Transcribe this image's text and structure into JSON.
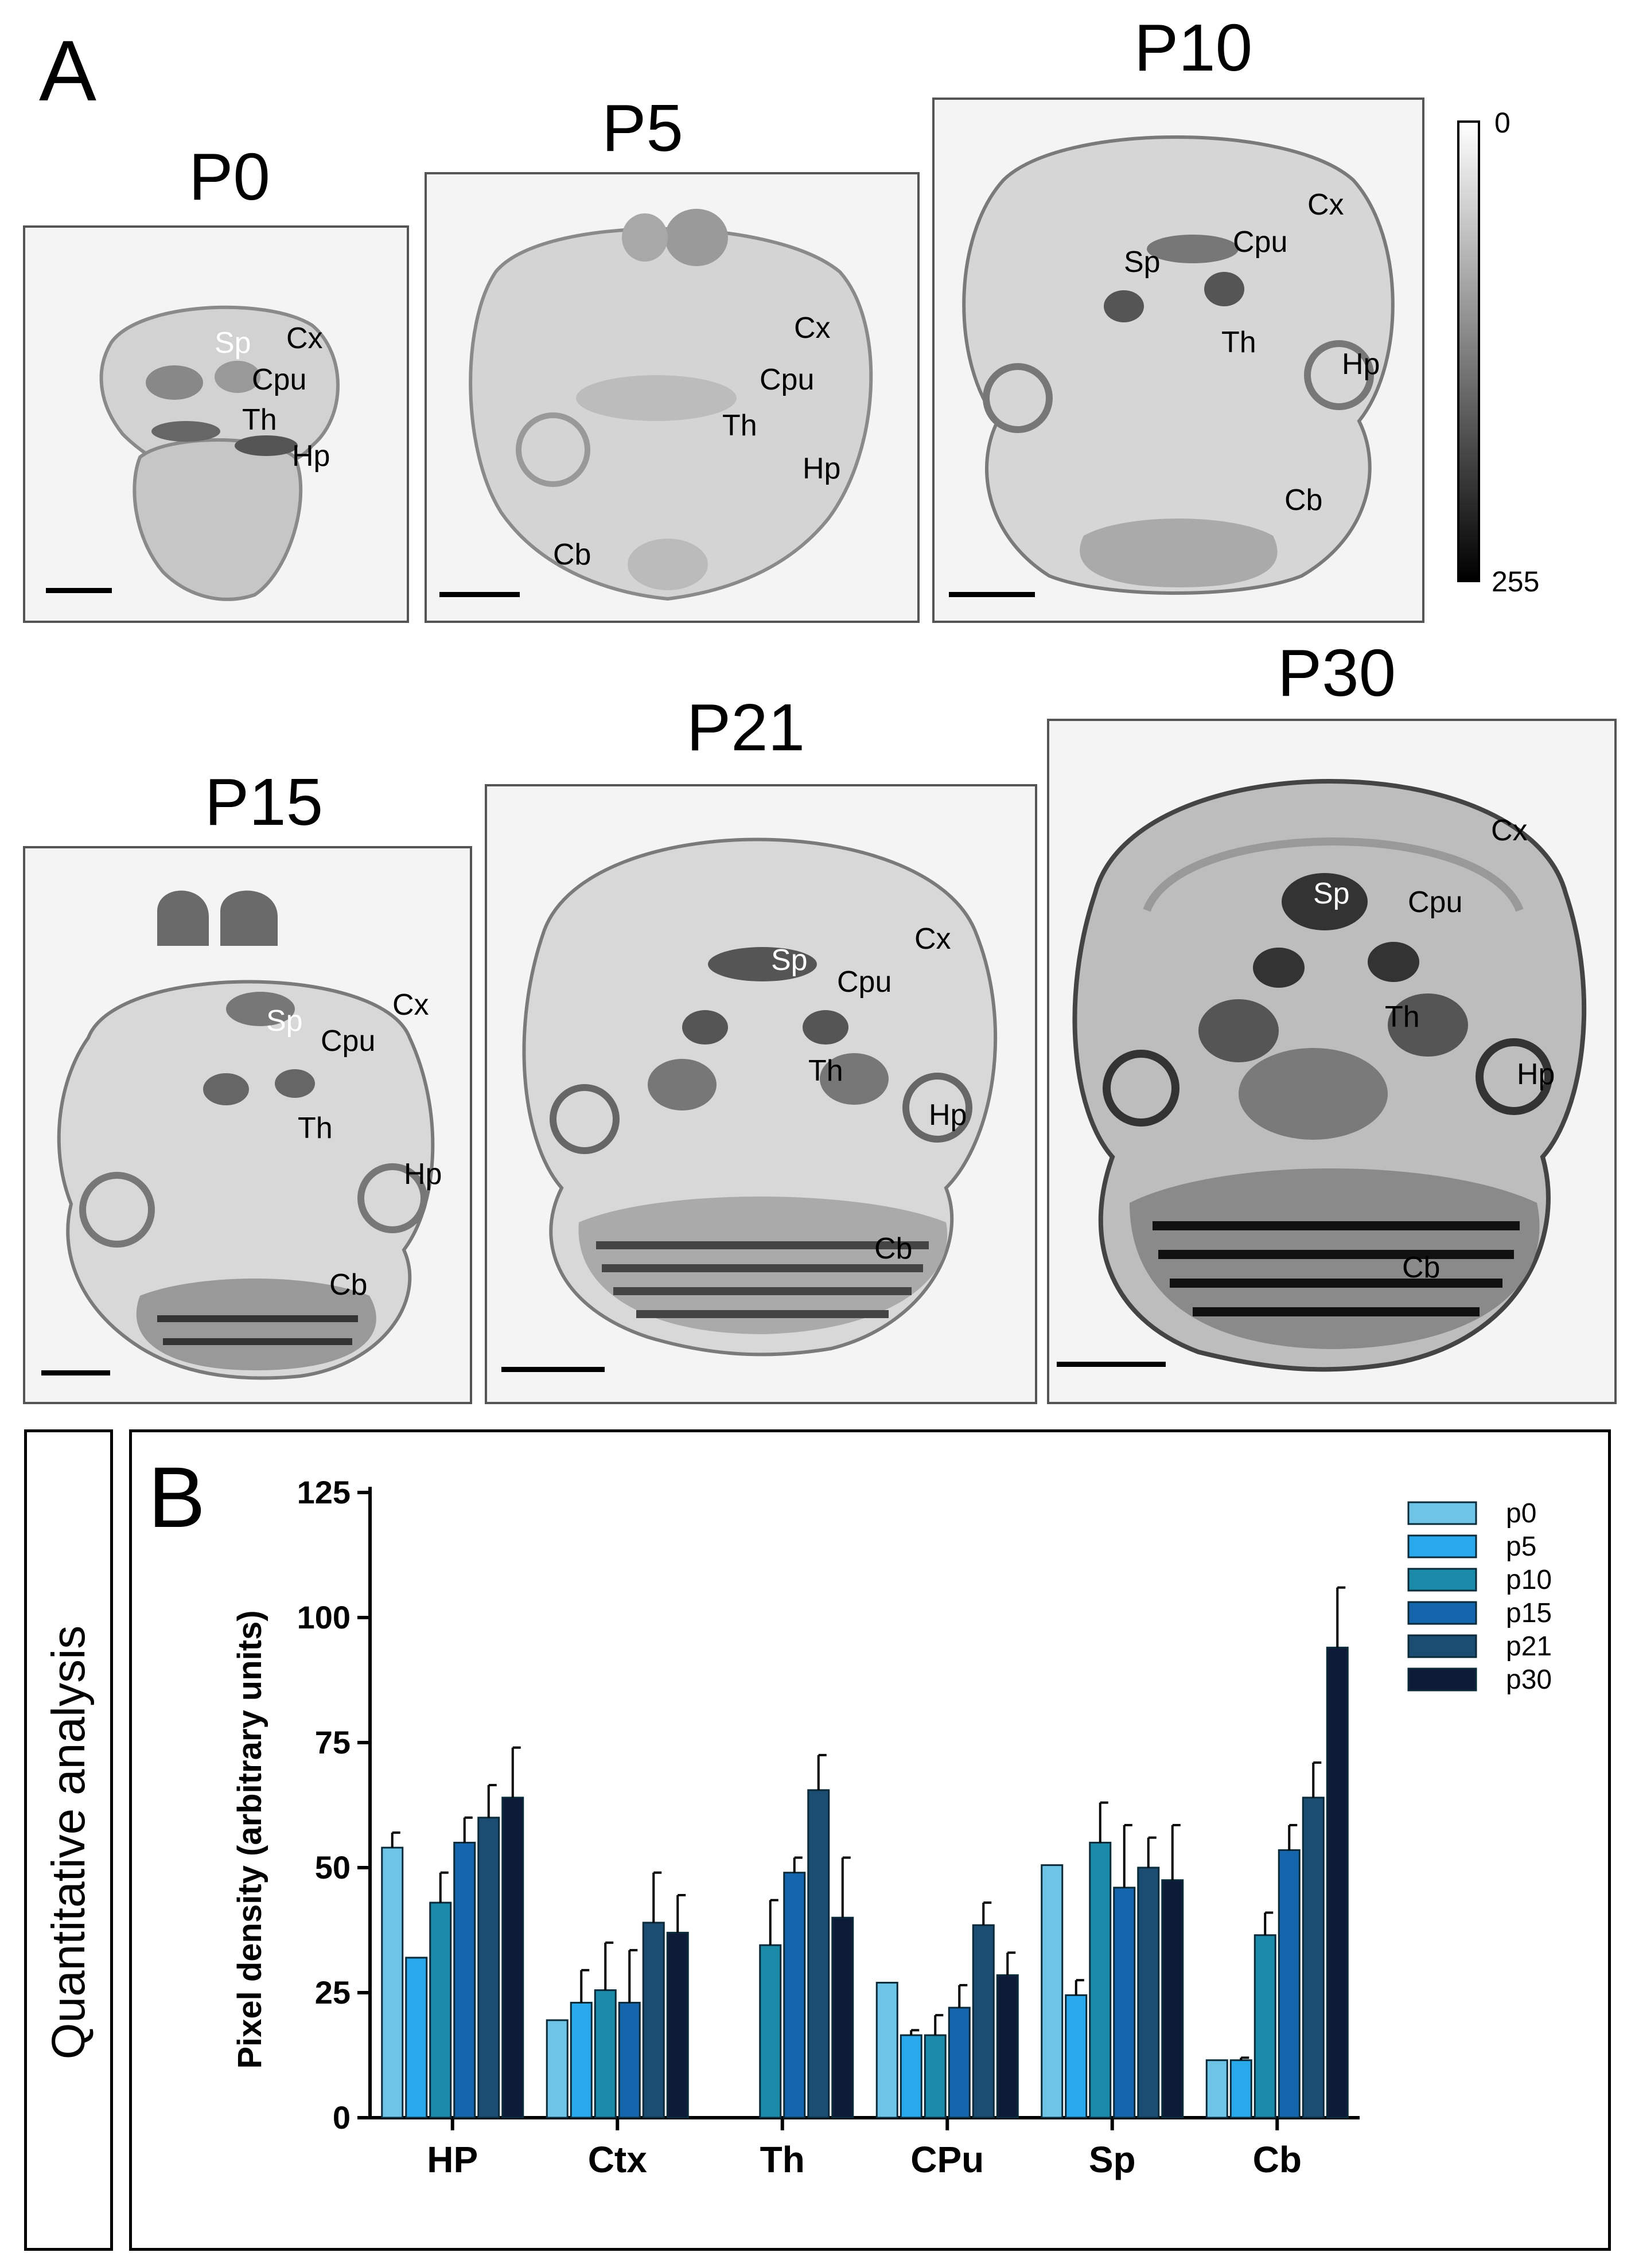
{
  "panel_a": {
    "letter": "A",
    "colorbar": {
      "min_label": "0",
      "max_label": "255"
    },
    "stages": [
      {
        "title": "P0",
        "regions": [
          "Cx",
          "Sp",
          "Cpu",
          "Th",
          "Hp"
        ]
      },
      {
        "title": "P5",
        "regions": [
          "Cx",
          "Cpu",
          "Th",
          "Hp",
          "Cb"
        ]
      },
      {
        "title": "P10",
        "regions": [
          "Cx",
          "Cpu",
          "Sp",
          "Th",
          "Hp",
          "Cb"
        ]
      },
      {
        "title": "P15",
        "regions": [
          "Cx",
          "Sp",
          "Cpu",
          "Th",
          "Hp",
          "Cb"
        ]
      },
      {
        "title": "P21",
        "regions": [
          "Cx",
          "Sp",
          "Cpu",
          "Th",
          "Hp",
          "Cb"
        ]
      },
      {
        "title": "P30",
        "regions": [
          "Cx",
          "Sp",
          "Cpu",
          "Th",
          "Hp",
          "Cb"
        ]
      }
    ]
  },
  "panel_b": {
    "letter": "B",
    "side_label": "Quantitative analysis"
  },
  "chart_data": {
    "type": "bar",
    "title": "",
    "xlabel": "",
    "ylabel": "Pixel density (arbitrary units)",
    "ylim": [
      0,
      125
    ],
    "yticks": [
      0,
      25,
      50,
      75,
      100,
      125
    ],
    "legend_position": "top-right",
    "categories": [
      "HP",
      "Ctx",
      "Th",
      "CPu",
      "Sp",
      "Cb"
    ],
    "series": [
      {
        "name": "p0",
        "color": "#6ec4e6",
        "values": [
          54,
          19.5,
          0,
          27,
          50.5,
          11.5
        ],
        "errors": [
          3,
          0,
          0,
          0,
          0,
          0
        ]
      },
      {
        "name": "p5",
        "color": "#2aa8ec",
        "values": [
          32,
          23,
          0,
          16.5,
          24.5,
          11.5
        ],
        "errors": [
          0,
          6.5,
          0,
          1,
          3,
          0.5
        ]
      },
      {
        "name": "p10",
        "color": "#1a8aa8",
        "values": [
          43,
          25.5,
          34.5,
          16.5,
          55,
          36.5
        ],
        "errors": [
          6,
          9.5,
          9,
          4,
          8,
          4.5
        ]
      },
      {
        "name": "p15",
        "color": "#1565ad",
        "values": [
          55,
          23,
          49,
          22,
          46,
          53.5
        ],
        "errors": [
          5,
          10.5,
          3,
          4.5,
          12.5,
          5
        ]
      },
      {
        "name": "p21",
        "color": "#1b4c72",
        "values": [
          60,
          39,
          65.5,
          38.5,
          50,
          64
        ],
        "errors": [
          6.5,
          10,
          7,
          4.5,
          6,
          7
        ]
      },
      {
        "name": "p30",
        "color": "#0d1a38",
        "values": [
          64,
          37,
          40,
          28.5,
          47.5,
          94
        ],
        "errors": [
          10,
          7.5,
          12,
          4.5,
          11,
          12
        ]
      }
    ]
  }
}
